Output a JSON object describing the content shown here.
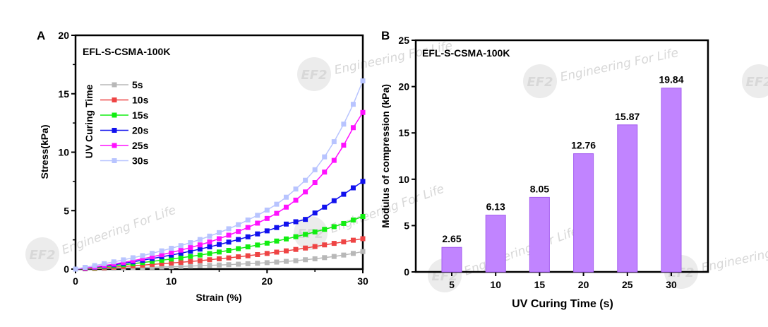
{
  "chart_data": [
    {
      "panel": "A",
      "type": "line",
      "title": "EFL-S-CSMA-100K",
      "xlabel": "Strain (%)",
      "ylabel": "Stress(kPa)",
      "xlim": [
        0,
        30
      ],
      "ylim": [
        0,
        20
      ],
      "xticks": [
        "0",
        "10",
        "20",
        "30"
      ],
      "yticks": [
        "0",
        "5",
        "10",
        "15",
        "20"
      ],
      "legend_title": "UV Curing Time",
      "legend_position": "top-left",
      "x": [
        0,
        1,
        2,
        3,
        4,
        5,
        6,
        7,
        8,
        9,
        10,
        11,
        12,
        13,
        14,
        15,
        16,
        17,
        18,
        19,
        20,
        21,
        22,
        23,
        24,
        25,
        26,
        27,
        28,
        29,
        30
      ],
      "series": [
        {
          "name": "5s",
          "color": "#b8b8b8",
          "values": [
            0,
            0.02,
            0.04,
            0.06,
            0.08,
            0.1,
            0.12,
            0.14,
            0.16,
            0.18,
            0.2,
            0.23,
            0.26,
            0.29,
            0.32,
            0.35,
            0.38,
            0.42,
            0.46,
            0.5,
            0.55,
            0.6,
            0.66,
            0.72,
            0.8,
            0.88,
            0.98,
            1.08,
            1.2,
            1.34,
            1.5
          ]
        },
        {
          "name": "10s",
          "color": "#ee4444",
          "values": [
            0,
            0.03,
            0.07,
            0.12,
            0.17,
            0.22,
            0.28,
            0.34,
            0.4,
            0.46,
            0.52,
            0.58,
            0.65,
            0.72,
            0.8,
            0.88,
            0.96,
            1.05,
            1.14,
            1.24,
            1.34,
            1.45,
            1.56,
            1.68,
            1.8,
            1.93,
            2.07,
            2.2,
            2.33,
            2.47,
            2.6
          ]
        },
        {
          "name": "15s",
          "color": "#11ee11",
          "values": [
            0,
            0.05,
            0.12,
            0.2,
            0.28,
            0.37,
            0.46,
            0.56,
            0.66,
            0.76,
            0.86,
            0.97,
            1.08,
            1.2,
            1.33,
            1.46,
            1.6,
            1.75,
            1.9,
            2.06,
            2.22,
            2.4,
            2.58,
            2.77,
            2.97,
            3.18,
            3.4,
            3.63,
            3.9,
            4.2,
            4.5
          ]
        },
        {
          "name": "20s",
          "color": "#1111ee",
          "values": [
            0,
            0.07,
            0.16,
            0.26,
            0.37,
            0.49,
            0.62,
            0.76,
            0.9,
            1.05,
            1.2,
            1.36,
            1.53,
            1.71,
            1.9,
            2.1,
            2.31,
            2.53,
            2.76,
            3.01,
            3.27,
            3.55,
            3.85,
            4.05,
            4.25,
            4.8,
            5.3,
            5.85,
            6.4,
            6.95,
            7.5
          ]
        },
        {
          "name": "25s",
          "color": "#ff11ff",
          "values": [
            0,
            0.08,
            0.18,
            0.3,
            0.43,
            0.57,
            0.72,
            0.88,
            1.05,
            1.23,
            1.42,
            1.62,
            1.84,
            2.07,
            2.32,
            2.6,
            2.9,
            3.22,
            3.56,
            3.93,
            4.33,
            4.77,
            5.3,
            5.9,
            6.6,
            7.4,
            8.3,
            9.3,
            10.6,
            12.1,
            13.4
          ]
        },
        {
          "name": "30s",
          "color": "#b8c4ff",
          "values": [
            0,
            0.15,
            0.3,
            0.46,
            0.62,
            0.79,
            0.97,
            1.15,
            1.35,
            1.56,
            1.78,
            2.01,
            2.26,
            2.53,
            2.82,
            3.12,
            3.45,
            3.8,
            4.2,
            4.6,
            5.05,
            5.55,
            6.15,
            6.85,
            7.6,
            8.5,
            9.6,
            10.9,
            12.4,
            14.1,
            16.1
          ]
        }
      ]
    },
    {
      "panel": "B",
      "type": "bar",
      "title": "EFL-S-CSMA-100K",
      "xlabel": "UV Curing Time (s)",
      "ylabel": "Modulus of compression (kPa)",
      "ylim": [
        0,
        25
      ],
      "yticks": [
        "0",
        "5",
        "10",
        "15",
        "20",
        "25"
      ],
      "categories": [
        "5",
        "10",
        "15",
        "20",
        "25",
        "30"
      ],
      "values": [
        2.65,
        6.13,
        8.05,
        12.76,
        15.87,
        19.84
      ],
      "labels": [
        "2.65",
        "6.13",
        "8.05",
        "12.76",
        "15.87",
        "19.84"
      ],
      "bar_color": "#c184ff"
    }
  ],
  "panel_labels": [
    "A",
    "B"
  ],
  "watermark": "Engineering For Life",
  "watermark_logo": "EF2"
}
